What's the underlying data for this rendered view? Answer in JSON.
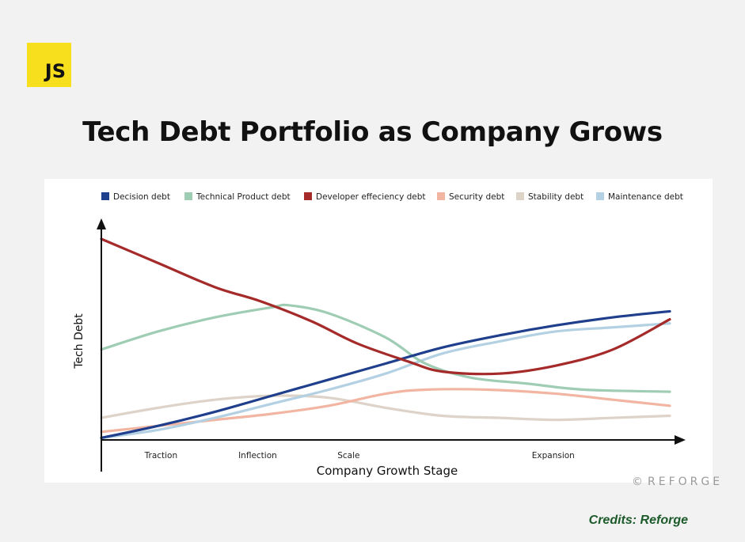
{
  "logo": {
    "text": "JS",
    "color": "#f7df1e"
  },
  "title": "Tech Debt Portfolio as Company Grows",
  "watermark": {
    "symbol": "©",
    "text": "REFORGE"
  },
  "credits": "Credits: Reforge",
  "chart_data": {
    "type": "line",
    "xlabel": "Company Growth Stage",
    "ylabel": "Tech Debt",
    "xlim": [
      0,
      100
    ],
    "ylim": [
      0,
      100
    ],
    "x_ticks": [
      {
        "label": "Traction",
        "x": 10.5
      },
      {
        "label": "Inflection",
        "x": 27.5
      },
      {
        "label": "Scale",
        "x": 43.5
      },
      {
        "label": "Expansion",
        "x": 79.5
      }
    ],
    "grid": false,
    "legend": "top",
    "series": [
      {
        "name": "Decision debt",
        "color": "#1f3f8c",
        "points": [
          [
            0,
            1
          ],
          [
            10,
            7
          ],
          [
            20,
            14
          ],
          [
            30,
            22
          ],
          [
            40,
            30
          ],
          [
            50,
            38
          ],
          [
            60,
            46
          ],
          [
            70,
            52
          ],
          [
            80,
            57
          ],
          [
            90,
            61
          ],
          [
            100,
            64
          ]
        ]
      },
      {
        "name": "Technical Product debt",
        "color": "#9fcdb4",
        "points": [
          [
            0,
            45
          ],
          [
            10,
            54
          ],
          [
            20,
            61
          ],
          [
            30,
            66
          ],
          [
            33,
            67
          ],
          [
            40,
            63
          ],
          [
            50,
            51
          ],
          [
            57,
            38
          ],
          [
            65,
            31
          ],
          [
            75,
            28
          ],
          [
            85,
            25
          ],
          [
            100,
            24
          ]
        ]
      },
      {
        "name": "Developer effeciency debt",
        "color": "#a52a2a",
        "points": [
          [
            0,
            100
          ],
          [
            10,
            88
          ],
          [
            20,
            76
          ],
          [
            28,
            69
          ],
          [
            37,
            59
          ],
          [
            45,
            48
          ],
          [
            54,
            39
          ],
          [
            60,
            34
          ],
          [
            70,
            33
          ],
          [
            80,
            37
          ],
          [
            90,
            45
          ],
          [
            100,
            60
          ]
        ]
      },
      {
        "name": "Security debt",
        "color": "#f2b5a1",
        "points": [
          [
            0,
            4
          ],
          [
            10,
            7
          ],
          [
            20,
            10
          ],
          [
            30,
            13
          ],
          [
            40,
            17
          ],
          [
            50,
            23
          ],
          [
            57,
            25
          ],
          [
            68,
            25
          ],
          [
            80,
            23
          ],
          [
            90,
            20
          ],
          [
            100,
            17
          ]
        ]
      },
      {
        "name": "Stability debt",
        "color": "#ddd3c8",
        "points": [
          [
            0,
            11
          ],
          [
            10,
            16
          ],
          [
            20,
            20
          ],
          [
            30,
            22
          ],
          [
            40,
            21
          ],
          [
            50,
            16
          ],
          [
            60,
            12
          ],
          [
            70,
            11
          ],
          [
            80,
            10
          ],
          [
            90,
            11
          ],
          [
            100,
            12
          ]
        ]
      },
      {
        "name": "Maintenance debt",
        "color": "#b3d1e3",
        "points": [
          [
            0,
            1
          ],
          [
            10,
            5
          ],
          [
            20,
            11
          ],
          [
            30,
            18
          ],
          [
            40,
            25
          ],
          [
            50,
            33
          ],
          [
            60,
            43
          ],
          [
            70,
            49
          ],
          [
            80,
            54
          ],
          [
            90,
            56
          ],
          [
            100,
            58
          ]
        ]
      }
    ]
  }
}
